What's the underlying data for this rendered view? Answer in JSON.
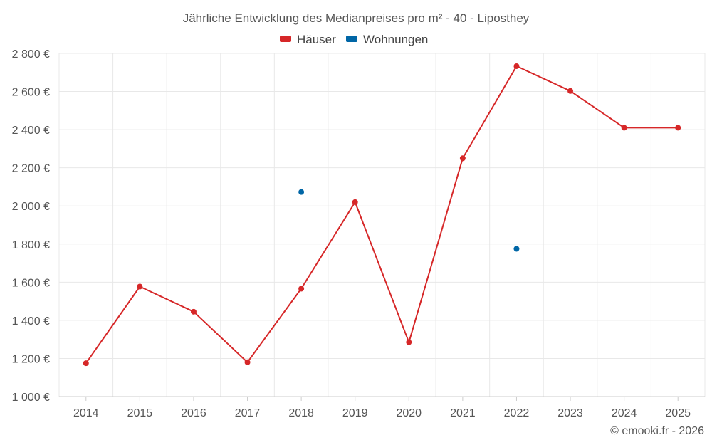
{
  "chart_data": {
    "type": "line",
    "title": "Jährliche Entwicklung des Medianpreises pro m² - 40 - Liposthey",
    "xlabel": "",
    "ylabel": "",
    "categories": [
      "2014",
      "2015",
      "2016",
      "2017",
      "2018",
      "2019",
      "2020",
      "2021",
      "2022",
      "2023",
      "2024",
      "2025"
    ],
    "ylim": [
      1000,
      2800
    ],
    "yticks": [
      1000,
      1200,
      1400,
      1600,
      1800,
      2000,
      2200,
      2400,
      2600,
      2800
    ],
    "ytick_labels": [
      "1 000 €",
      "1 200 €",
      "1 400 €",
      "1 600 €",
      "1 800 €",
      "2 000 €",
      "2 200 €",
      "2 400 €",
      "2 600 €",
      "2 800 €"
    ],
    "grid": true,
    "legend_position": "top-center",
    "series": [
      {
        "name": "Häuser",
        "color": "#d62728",
        "values": [
          1175,
          1577,
          1445,
          1180,
          1566,
          2020,
          1285,
          2250,
          2733,
          2603,
          2410,
          2410
        ]
      },
      {
        "name": "Wohnungen",
        "color": "#0066a6",
        "values": [
          null,
          null,
          null,
          null,
          2073,
          null,
          null,
          null,
          1775,
          null,
          null,
          null
        ]
      }
    ],
    "credit": "© emooki.fr - 2026"
  }
}
